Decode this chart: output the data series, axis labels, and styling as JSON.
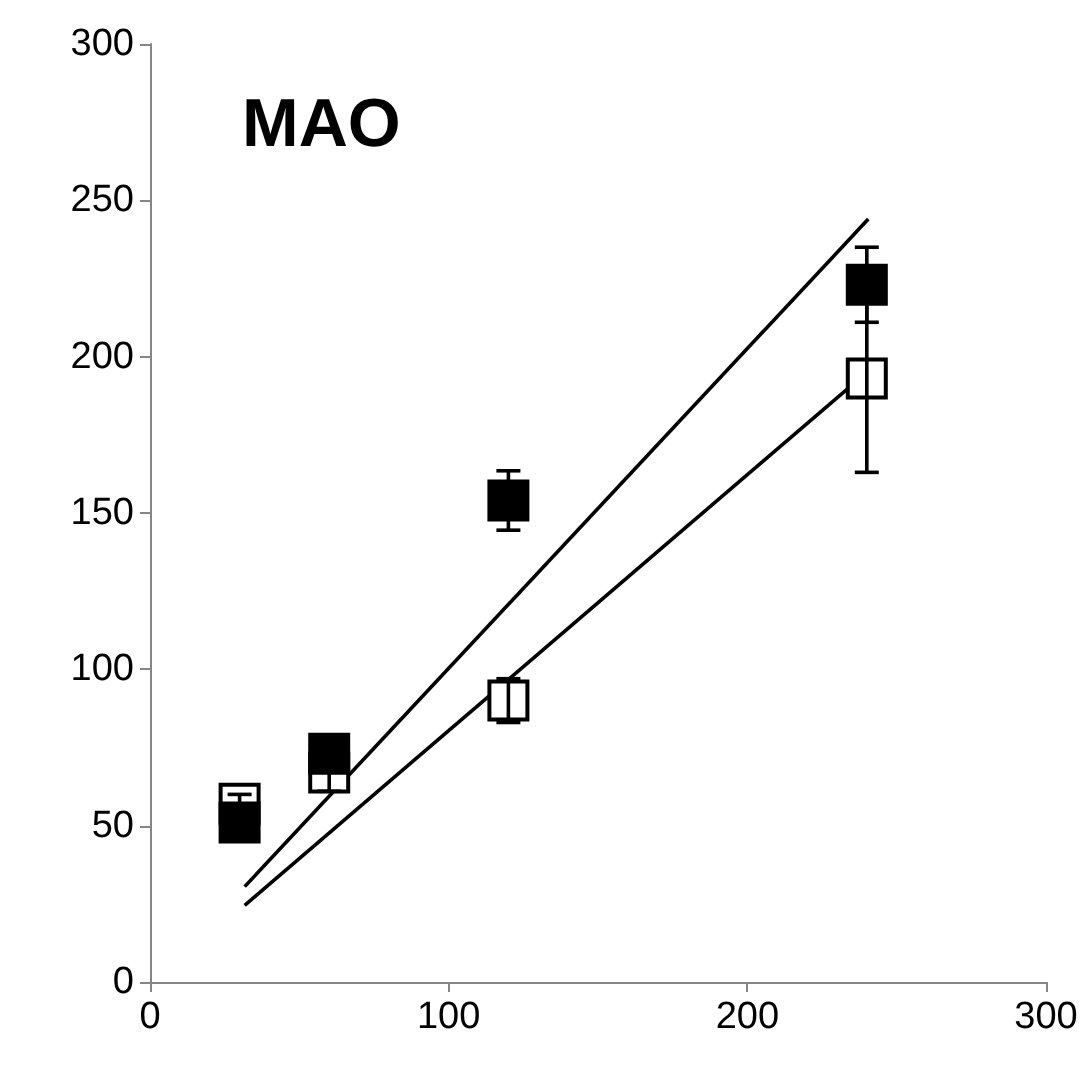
{
  "chart_data": {
    "type": "scatter",
    "title": "MAO",
    "xlim": [
      0,
      300
    ],
    "xticks": [
      0,
      100,
      200,
      300
    ],
    "ylim": [
      0,
      300
    ],
    "yticks": [
      0,
      50,
      100,
      150,
      200,
      250,
      300
    ],
    "grid": false,
    "marker": "square",
    "series": [
      {
        "color": "#000000",
        "x": [
          30,
          60,
          120,
          240
        ],
        "values": [
          51,
          73,
          154,
          223
        ],
        "errors": [
          null,
          null,
          9.5,
          12
        ]
      },
      {
        "color": "#ffffff",
        "x": [
          30,
          60,
          120,
          240
        ],
        "values": [
          57,
          67,
          90,
          193
        ],
        "errors": [
          3,
          6,
          7,
          30
        ]
      },
      {
        "type": "line",
        "color": "#000000",
        "marker": "none",
        "x": [
          31.7,
          240.5
        ],
        "values": [
          30.5,
          244
        ]
      },
      {
        "type": "line",
        "color": "#000000",
        "marker": "none",
        "x": [
          31.7,
          240
        ],
        "values": [
          24.5,
          195
        ]
      }
    ]
  }
}
